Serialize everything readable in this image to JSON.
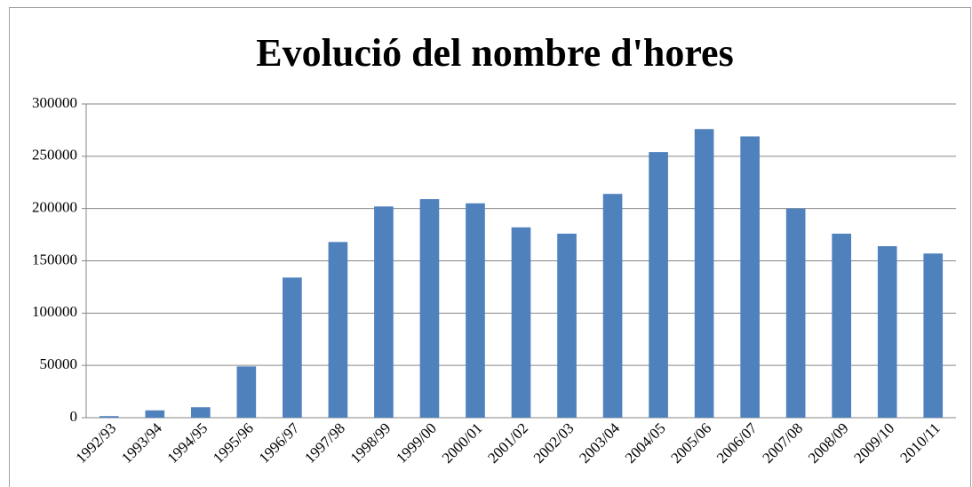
{
  "chart_data": {
    "type": "bar",
    "title": "Evolució del nombre d'hores",
    "categories": [
      "1992/93",
      "1993/94",
      "1994/95",
      "1995/96",
      "1996/97",
      "1997/98",
      "1998/99",
      "1999/00",
      "2000/01",
      "2001/02",
      "2002/03",
      "2003/04",
      "2004/05",
      "2005/06",
      "2006/07",
      "2007/08",
      "2008/09",
      "2009/10",
      "2010/11"
    ],
    "values": [
      1500,
      7000,
      10000,
      49000,
      134000,
      168000,
      202000,
      209000,
      205000,
      182000,
      176000,
      214000,
      254000,
      276000,
      269000,
      200000,
      176000,
      164000,
      157000
    ],
    "color": "#4f81bd",
    "ylim": [
      0,
      300000
    ],
    "yticks": [
      0,
      50000,
      100000,
      150000,
      200000,
      250000,
      300000
    ],
    "grid": true
  }
}
